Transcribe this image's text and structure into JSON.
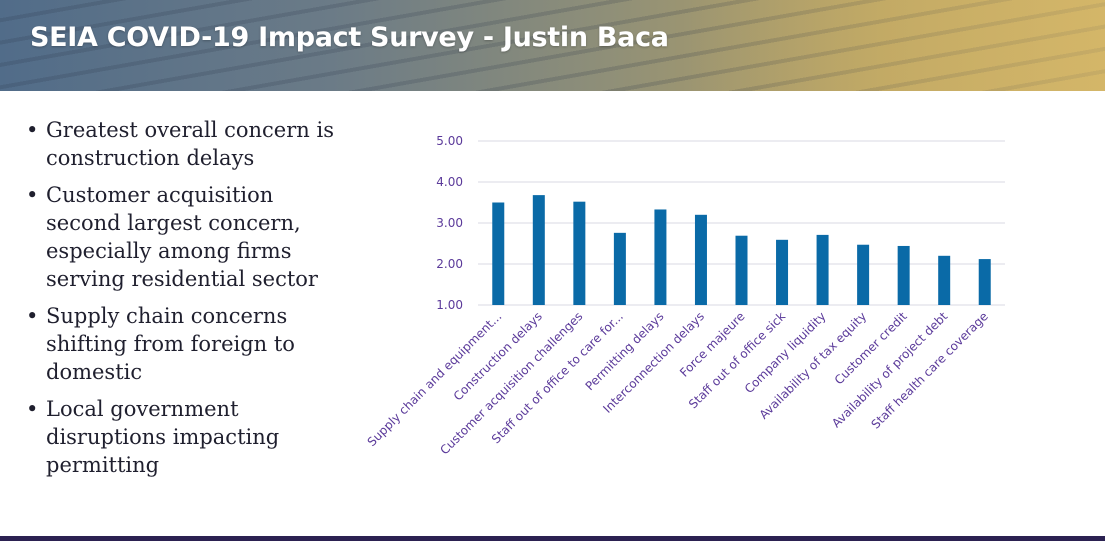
{
  "header": {
    "title": "SEIA COVID-19 Impact Survey - Justin Baca"
  },
  "bullets": [
    "Greatest overall concern is construction delays",
    "Customer acquisition second largest concern, especially among firms serving residential sector",
    "Supply chain concerns shifting from foreign to domestic",
    "Local government disruptions impacting permitting"
  ],
  "bullet_symbol": "•",
  "chart_data": {
    "type": "bar",
    "title": "",
    "xlabel": "",
    "ylabel": "",
    "ylim": [
      1.0,
      5.0
    ],
    "yticks": [
      "1.00",
      "2.00",
      "3.00",
      "4.00",
      "5.00"
    ],
    "grid": true,
    "bar_color": "#0a6aa7",
    "label_color": "#5b3a9a",
    "categories": [
      "Supply chain and equipment...",
      "Construction delays",
      "Customer acquisition challenges",
      "Staff out of office to care for...",
      "Permitting delays",
      "Interconnection delays",
      "Force majeure",
      "Staff out of office sick",
      "Company liquidity",
      "Availability of tax equity",
      "Customer credit",
      "Availability of project debt",
      "Staff health care coverage"
    ],
    "values": [
      3.5,
      3.68,
      3.52,
      2.76,
      3.33,
      3.2,
      2.69,
      2.59,
      2.71,
      2.47,
      2.44,
      2.2,
      2.12
    ]
  }
}
